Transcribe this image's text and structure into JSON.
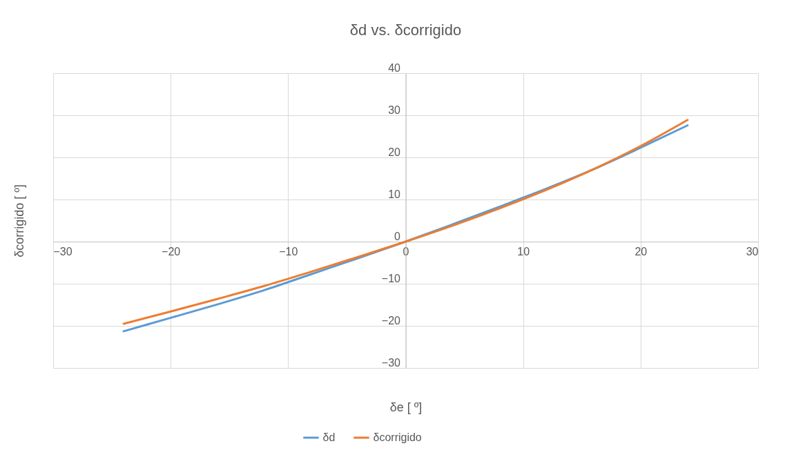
{
  "chart_data": {
    "type": "line",
    "title": "δd vs. δcorrigido",
    "xlabel": "δe [ º]",
    "ylabel": "δcorrigido [ º]",
    "x": [
      -24,
      -20,
      -16,
      -12,
      -8,
      -4,
      0,
      4,
      8,
      12,
      16,
      20,
      24
    ],
    "series": [
      {
        "name": "δd",
        "color": "#5b9bd5",
        "values": [
          -21.3,
          -18.1,
          -14.9,
          -11.5,
          -7.7,
          -3.9,
          0,
          4.1,
          8.3,
          12.6,
          17.2,
          22.3,
          27.6
        ]
      },
      {
        "name": "δcorrigido",
        "color": "#ed7d31",
        "values": [
          -19.5,
          -16.6,
          -13.6,
          -10.5,
          -7.1,
          -3.6,
          0,
          3.8,
          7.9,
          12.3,
          17.2,
          22.7,
          28.9
        ]
      }
    ],
    "xlim": [
      -30,
      30
    ],
    "xticks": [
      -30,
      -20,
      -10,
      0,
      10,
      20,
      30
    ],
    "ylim": [
      -30,
      40
    ],
    "yticks": [
      -30,
      -20,
      -10,
      0,
      10,
      20,
      30,
      40
    ],
    "grid": true,
    "legend": "bottom",
    "marker": "none",
    "line_style": "solid"
  }
}
